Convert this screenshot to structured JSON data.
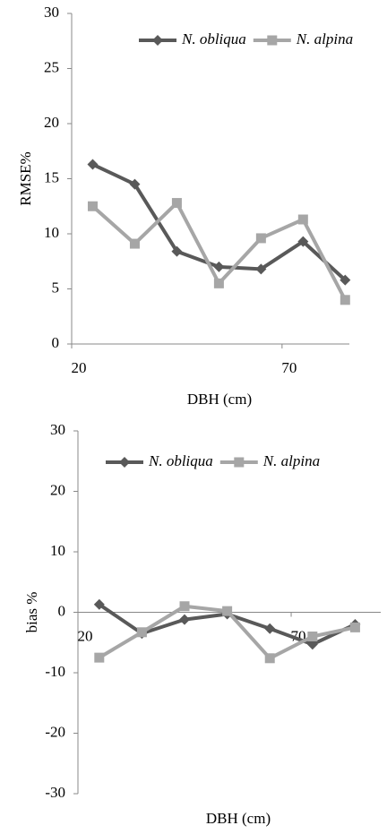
{
  "chart_data": [
    {
      "type": "line",
      "xlabel": "DBH (cm)",
      "ylabel": "RMSE%",
      "x": [
        25,
        35,
        45,
        55,
        65,
        75,
        85
      ],
      "series": [
        {
          "name": "N. obliqua",
          "color": "#595959",
          "marker": "diamond",
          "values": [
            16.3,
            14.5,
            8.4,
            7.0,
            6.8,
            9.3,
            5.8
          ]
        },
        {
          "name": "N. alpina",
          "color": "#a6a6a6",
          "marker": "square",
          "values": [
            12.5,
            9.1,
            12.8,
            5.5,
            9.6,
            11.3,
            4.0
          ]
        }
      ],
      "xlim": [
        20,
        86
      ],
      "xticks": [
        20,
        70
      ],
      "ylim": [
        0,
        30
      ],
      "yticks": [
        0,
        5,
        10,
        15,
        20,
        25,
        30
      ],
      "legend": "upper right"
    },
    {
      "type": "line",
      "xlabel": "DBH (cm)",
      "ylabel": "bias %",
      "x": [
        25,
        35,
        45,
        55,
        65,
        75,
        85
      ],
      "series": [
        {
          "name": "N. obliqua",
          "color": "#595959",
          "marker": "diamond",
          "values": [
            1.3,
            -3.5,
            -1.2,
            -0.3,
            -2.7,
            -5.3,
            -2.0
          ]
        },
        {
          "name": "N. alpina",
          "color": "#a6a6a6",
          "marker": "square",
          "values": [
            -7.5,
            -3.3,
            1.0,
            0.2,
            -7.6,
            -4.0,
            -2.5
          ]
        }
      ],
      "xlim": [
        20,
        91
      ],
      "xticks": [
        20,
        70
      ],
      "ylim": [
        -30,
        30
      ],
      "yticks": [
        -30,
        -20,
        -10,
        0,
        10,
        20,
        30
      ],
      "legend": "upper right"
    }
  ]
}
